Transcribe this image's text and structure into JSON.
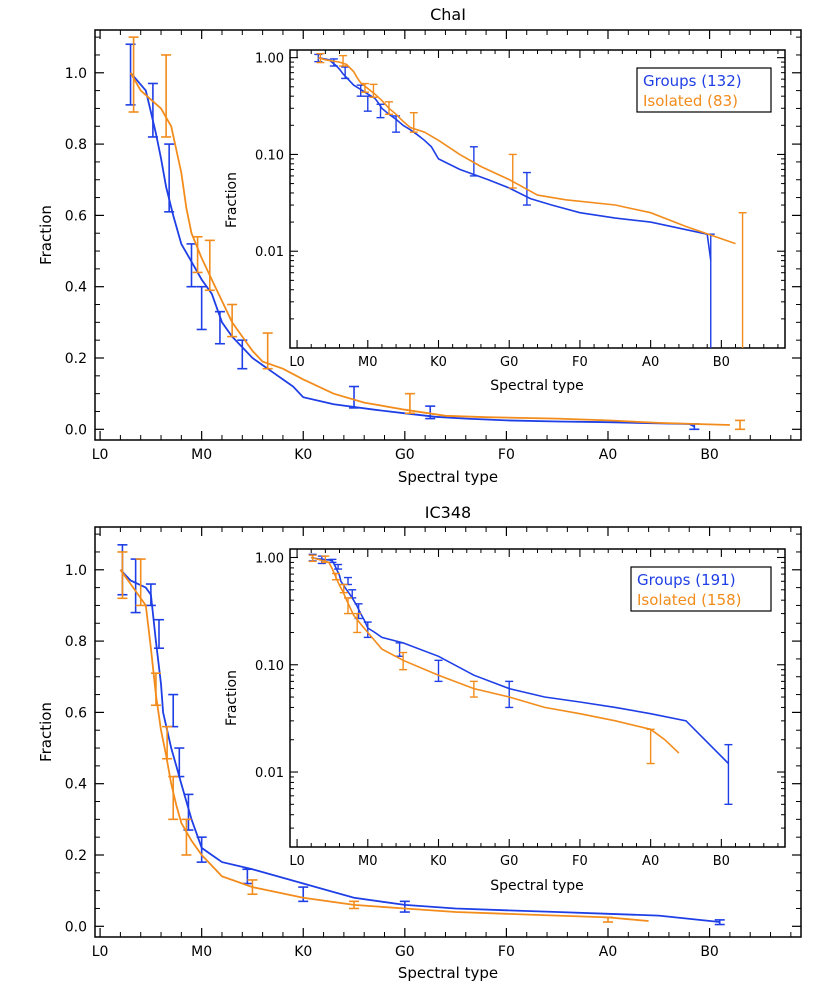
{
  "colors": {
    "groups": "#1f3fe6",
    "isolated": "#f28c1c",
    "frame": "#000000"
  },
  "x_tick_labels": [
    "L0",
    "M0",
    "K0",
    "G0",
    "F0",
    "A0",
    "B0"
  ],
  "chart_data": [
    {
      "type": "line",
      "title": "ChaI",
      "xlabel": "Spectral type",
      "ylabel": "Fraction",
      "ylim": [
        0,
        1.1
      ],
      "yticks": [
        "0.0",
        "0.2",
        "0.4",
        "0.6",
        "0.8",
        "1.0"
      ],
      "series": [
        {
          "name": "Groups",
          "legend": "Groups (132)",
          "x": [
            0.3,
            0.45,
            0.5,
            0.55,
            0.6,
            0.65,
            0.72,
            0.8,
            0.9,
            1.0,
            1.1,
            1.15,
            1.2,
            1.3,
            1.4,
            1.5,
            1.6,
            1.7,
            1.8,
            1.9,
            2.0,
            2.3,
            2.7,
            3.0,
            3.3,
            3.6,
            4.0,
            4.5,
            5.0,
            5.8,
            5.85
          ],
          "y": [
            1.0,
            0.95,
            0.89,
            0.83,
            0.76,
            0.68,
            0.6,
            0.52,
            0.47,
            0.42,
            0.38,
            0.34,
            0.3,
            0.26,
            0.23,
            0.2,
            0.18,
            0.16,
            0.14,
            0.12,
            0.09,
            0.07,
            0.055,
            0.045,
            0.035,
            0.03,
            0.025,
            0.022,
            0.02,
            0.015,
            0.008
          ],
          "errorbars": [
            {
              "x": 0.3,
              "y": 1.0,
              "lo": 0.91,
              "hi": 1.08
            },
            {
              "x": 0.52,
              "y": 0.89,
              "lo": 0.82,
              "hi": 0.97
            },
            {
              "x": 0.68,
              "y": 0.7,
              "lo": 0.61,
              "hi": 0.8
            },
            {
              "x": 0.9,
              "y": 0.47,
              "lo": 0.4,
              "hi": 0.52
            },
            {
              "x": 1.0,
              "y": 0.36,
              "lo": 0.28,
              "hi": 0.4
            },
            {
              "x": 1.18,
              "y": 0.3,
              "lo": 0.24,
              "hi": 0.33
            },
            {
              "x": 1.4,
              "y": 0.21,
              "lo": 0.17,
              "hi": 0.25
            },
            {
              "x": 2.5,
              "y": 0.085,
              "lo": 0.06,
              "hi": 0.12
            },
            {
              "x": 3.25,
              "y": 0.045,
              "lo": 0.03,
              "hi": 0.065
            },
            {
              "x": 5.85,
              "y": 0.008,
              "lo": 0.0,
              "hi": 0.015
            }
          ]
        },
        {
          "name": "Isolated",
          "legend": "Isolated (83)",
          "x": [
            0.3,
            0.4,
            0.6,
            0.7,
            0.8,
            0.85,
            0.9,
            1.0,
            1.1,
            1.2,
            1.3,
            1.4,
            1.5,
            1.6,
            1.8,
            2.0,
            2.3,
            2.6,
            3.0,
            3.4,
            3.8,
            4.5,
            5.0,
            5.5,
            6.2
          ],
          "y": [
            1.0,
            0.95,
            0.9,
            0.85,
            0.72,
            0.62,
            0.55,
            0.48,
            0.42,
            0.36,
            0.3,
            0.26,
            0.22,
            0.19,
            0.17,
            0.14,
            0.1,
            0.075,
            0.055,
            0.038,
            0.034,
            0.03,
            0.025,
            0.018,
            0.012
          ],
          "errorbars": [
            {
              "x": 0.33,
              "y": 0.98,
              "lo": 0.89,
              "hi": 1.1
            },
            {
              "x": 0.65,
              "y": 0.92,
              "lo": 0.82,
              "hi": 1.05
            },
            {
              "x": 0.96,
              "y": 0.49,
              "lo": 0.44,
              "hi": 0.54
            },
            {
              "x": 1.08,
              "y": 0.44,
              "lo": 0.39,
              "hi": 0.53
            },
            {
              "x": 1.3,
              "y": 0.3,
              "lo": 0.26,
              "hi": 0.35
            },
            {
              "x": 1.65,
              "y": 0.22,
              "lo": 0.17,
              "hi": 0.27
            },
            {
              "x": 3.05,
              "y": 0.06,
              "lo": 0.045,
              "hi": 0.1
            },
            {
              "x": 6.3,
              "y": 0.012,
              "lo": 0.0,
              "hi": 0.025
            }
          ]
        }
      ],
      "inset": {
        "ylabel": "Fraction",
        "xlabel": "Spectral type",
        "scale": "log",
        "ylim": [
          0.001,
          1.2
        ],
        "yticks": [
          "0.01",
          "0.10",
          "1.00"
        ]
      }
    },
    {
      "type": "line",
      "title": "IC348",
      "xlabel": "Spectral type",
      "ylabel": "Fraction",
      "ylim": [
        0,
        1.1
      ],
      "yticks": [
        "0.0",
        "0.2",
        "0.4",
        "0.6",
        "0.8",
        "1.0"
      ],
      "series": [
        {
          "name": "Groups",
          "legend": "Groups (191)",
          "x": [
            0.2,
            0.3,
            0.45,
            0.5,
            0.55,
            0.6,
            0.62,
            0.7,
            0.75,
            0.8,
            0.85,
            0.9,
            0.95,
            1.0,
            1.1,
            1.2,
            1.5,
            2.0,
            2.5,
            3.0,
            3.5,
            4.0,
            4.5,
            5.0,
            5.5,
            6.1
          ],
          "y": [
            1.0,
            0.97,
            0.95,
            0.93,
            0.8,
            0.68,
            0.6,
            0.5,
            0.45,
            0.4,
            0.35,
            0.3,
            0.26,
            0.22,
            0.2,
            0.18,
            0.16,
            0.12,
            0.08,
            0.06,
            0.05,
            0.045,
            0.04,
            0.035,
            0.03,
            0.012
          ],
          "errorbars": [
            {
              "x": 0.22,
              "y": 1.0,
              "lo": 0.93,
              "hi": 1.07
            },
            {
              "x": 0.35,
              "y": 0.96,
              "lo": 0.88,
              "hi": 1.03
            },
            {
              "x": 0.5,
              "y": 0.93,
              "lo": 0.9,
              "hi": 0.96
            },
            {
              "x": 0.58,
              "y": 0.82,
              "lo": 0.78,
              "hi": 0.86
            },
            {
              "x": 0.72,
              "y": 0.62,
              "lo": 0.56,
              "hi": 0.65
            },
            {
              "x": 0.78,
              "y": 0.46,
              "lo": 0.42,
              "hi": 0.5
            },
            {
              "x": 0.87,
              "y": 0.32,
              "lo": 0.27,
              "hi": 0.37
            },
            {
              "x": 1.0,
              "y": 0.22,
              "lo": 0.18,
              "hi": 0.25
            },
            {
              "x": 1.45,
              "y": 0.14,
              "lo": 0.12,
              "hi": 0.16
            },
            {
              "x": 2.0,
              "y": 0.09,
              "lo": 0.07,
              "hi": 0.11
            },
            {
              "x": 3.0,
              "y": 0.06,
              "lo": 0.04,
              "hi": 0.07
            },
            {
              "x": 6.1,
              "y": 0.012,
              "lo": 0.005,
              "hi": 0.018
            }
          ]
        },
        {
          "name": "Isolated",
          "legend": "Isolated (158)",
          "x": [
            0.2,
            0.3,
            0.45,
            0.5,
            0.55,
            0.6,
            0.65,
            0.7,
            0.75,
            0.8,
            0.9,
            1.0,
            1.2,
            1.5,
            2.0,
            2.5,
            3.0,
            3.5,
            4.0,
            4.5,
            5.0,
            5.2,
            5.4
          ],
          "y": [
            1.0,
            0.96,
            0.9,
            0.78,
            0.65,
            0.55,
            0.48,
            0.4,
            0.34,
            0.29,
            0.24,
            0.2,
            0.14,
            0.11,
            0.08,
            0.06,
            0.05,
            0.04,
            0.035,
            0.03,
            0.025,
            0.02,
            0.015
          ],
          "errorbars": [
            {
              "x": 0.22,
              "y": 0.98,
              "lo": 0.92,
              "hi": 1.05
            },
            {
              "x": 0.4,
              "y": 0.96,
              "lo": 0.9,
              "hi": 1.03
            },
            {
              "x": 0.55,
              "y": 0.67,
              "lo": 0.62,
              "hi": 0.71
            },
            {
              "x": 0.66,
              "y": 0.52,
              "lo": 0.47,
              "hi": 0.56
            },
            {
              "x": 0.72,
              "y": 0.37,
              "lo": 0.3,
              "hi": 0.42
            },
            {
              "x": 0.85,
              "y": 0.25,
              "lo": 0.2,
              "hi": 0.3
            },
            {
              "x": 1.5,
              "y": 0.11,
              "lo": 0.09,
              "hi": 0.13
            },
            {
              "x": 2.5,
              "y": 0.06,
              "lo": 0.05,
              "hi": 0.07
            },
            {
              "x": 5.0,
              "y": 0.02,
              "lo": 0.012,
              "hi": 0.025
            }
          ]
        }
      ],
      "inset": {
        "ylabel": "Fraction",
        "xlabel": "Spectral type",
        "scale": "log",
        "ylim": [
          0.002,
          1.2
        ],
        "yticks": [
          "0.01",
          "0.10",
          "1.00"
        ]
      }
    }
  ]
}
